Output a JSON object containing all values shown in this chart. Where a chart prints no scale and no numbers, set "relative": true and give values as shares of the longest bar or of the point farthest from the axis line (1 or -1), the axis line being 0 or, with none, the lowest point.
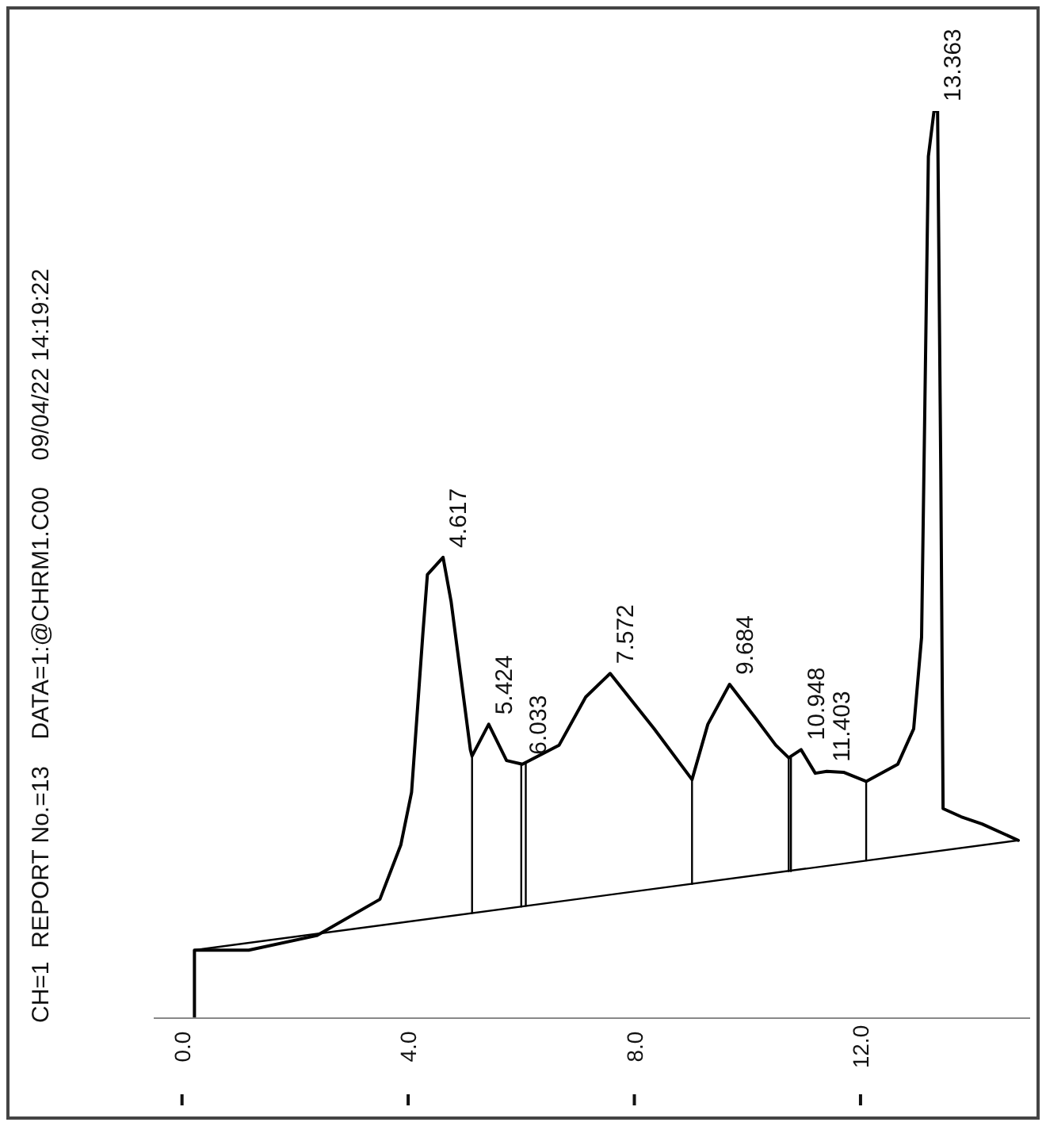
{
  "chart_data": {
    "type": "line",
    "relative": true,
    "title": "CH=1  REPORT No.=13    DATA=1:@CHRM1.C00    09/04/22 14:19:22",
    "xlim": [
      -0.5,
      15
    ],
    "xticks": [
      {
        "value": 0,
        "label": "0.0"
      },
      {
        "value": 4,
        "label": "4.0"
      },
      {
        "value": 8,
        "label": "8.0"
      },
      {
        "value": 12,
        "label": "12.0"
      }
    ],
    "tick_labels": "x",
    "grid": false,
    "marker": "none",
    "line_style": "solid",
    "series": [
      {
        "color": "#000000",
        "x": [
          0.22,
          0.22,
          1.18,
          2.38,
          3.5,
          3.87,
          4.06,
          4.26,
          4.34,
          4.617,
          4.76,
          5.1,
          5.13,
          5.424,
          5.74,
          6.02,
          6.67,
          7.14,
          7.572,
          8.35,
          9.02,
          9.3,
          9.684,
          10.14,
          10.5,
          10.73,
          10.948,
          11.2,
          11.403,
          11.7,
          12.1,
          12.66,
          12.94,
          13.08,
          13.2,
          13.3,
          13.363,
          13.42,
          13.46,
          13.78,
          14.15,
          14.79
        ],
        "values": [
          0,
          0.075,
          0.075,
          0.091,
          0.131,
          0.191,
          0.249,
          0.424,
          0.489,
          0.508,
          0.459,
          0.296,
          0.289,
          0.324,
          0.284,
          0.28,
          0.301,
          0.354,
          0.38,
          0.319,
          0.263,
          0.324,
          0.368,
          0.331,
          0.301,
          0.287,
          0.296,
          0.27,
          0.272,
          0.271,
          0.261,
          0.28,
          0.319,
          0.42,
          0.95,
          1,
          1,
          0.6,
          0.231,
          0.222,
          0.214,
          0.196
        ]
      },
      {
        "color": "#000000",
        "x": [
          0.22,
          14.79
        ],
        "values": [
          0.075,
          0.196
        ]
      },
      {
        "color": "#000000",
        "x": [
          5.13,
          5.13
        ],
        "values": [
          0.116,
          0.289
        ]
      },
      {
        "color": "#000000",
        "x": [
          6.0,
          6.0
        ],
        "values": [
          0.123,
          0.28
        ]
      },
      {
        "color": "#000000",
        "x": [
          6.08,
          6.08
        ],
        "values": [
          0.124,
          0.28
        ]
      },
      {
        "color": "#000000",
        "x": [
          9.02,
          9.02
        ],
        "values": [
          0.148,
          0.263
        ]
      },
      {
        "color": "#000000",
        "x": [
          10.73,
          10.73
        ],
        "values": [
          0.162,
          0.287
        ]
      },
      {
        "color": "#000000",
        "x": [
          10.77,
          10.77
        ],
        "values": [
          0.162,
          0.287
        ]
      },
      {
        "color": "#000000",
        "x": [
          12.1,
          12.1
        ],
        "values": [
          0.174,
          0.261
        ]
      }
    ],
    "annotations": [
      {
        "text": "4.617",
        "x": 4.617,
        "y": 0.508
      },
      {
        "text": "5.424",
        "x": 5.424,
        "y": 0.324
      },
      {
        "text": "6.033",
        "x": 6.033,
        "y": 0.28
      },
      {
        "text": "7.572",
        "x": 7.572,
        "y": 0.38
      },
      {
        "text": "9.684",
        "x": 9.684,
        "y": 0.368
      },
      {
        "text": "10.948",
        "x": 10.948,
        "y": 0.296
      },
      {
        "text": "11.403",
        "x": 11.403,
        "y": 0.272
      },
      {
        "text": "13.363",
        "x": 13.363,
        "y": 1
      }
    ]
  }
}
